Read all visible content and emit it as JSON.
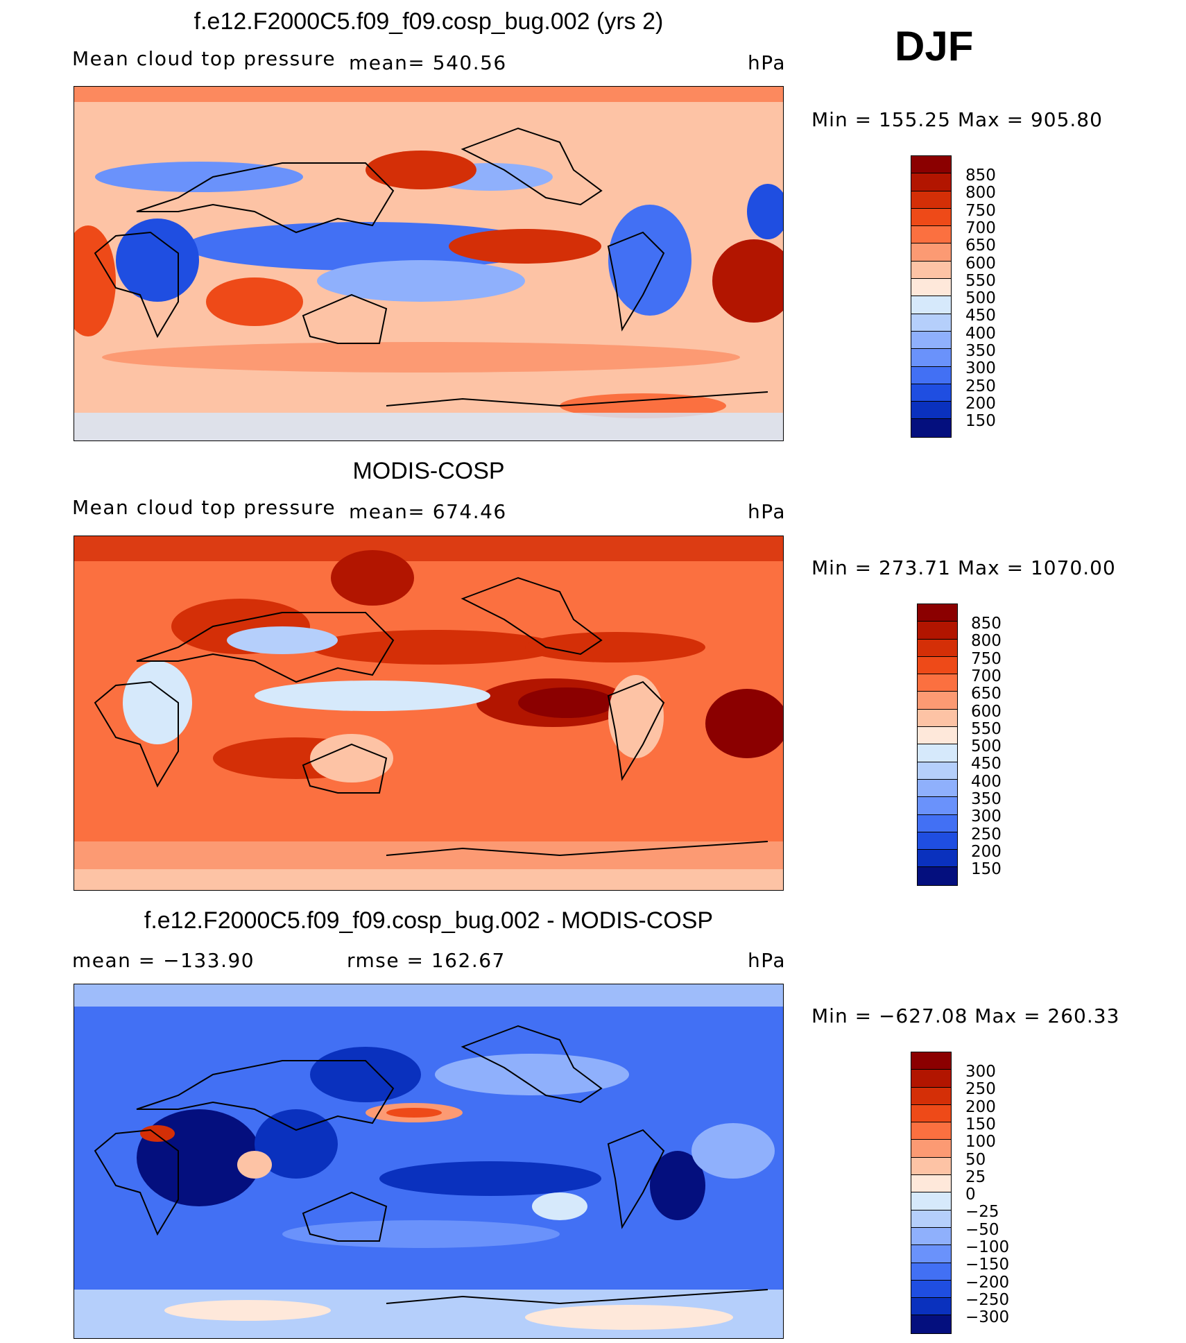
{
  "season": "DJF",
  "panels": [
    {
      "title": "f.e12.F2000C5.f09_f09.cosp_bug.002 (yrs 2)",
      "variable": "Mean cloud top pressure",
      "stat1": "mean=  540.56",
      "stat2": "",
      "units": "hPa",
      "minmax": "Min  =  155.25  Max  =  905.80",
      "colorbar_labels": [
        "850",
        "800",
        "750",
        "700",
        "650",
        "600",
        "550",
        "500",
        "450",
        "400",
        "350",
        "300",
        "250",
        "200",
        "150"
      ],
      "colorbar_colors": [
        "#8b0000",
        "#b21500",
        "#d42f07",
        "#ee4a18",
        "#fb7040",
        "#fc9a73",
        "#fdc3a5",
        "#fee8da",
        "#d6e9fb",
        "#b5cffb",
        "#8fb0fc",
        "#6a92fb",
        "#4270f4",
        "#1f4ee1",
        "#0a31be",
        "#040f7e"
      ]
    },
    {
      "title": "MODIS-COSP",
      "variable": "Mean cloud top pressure",
      "stat1": "mean=  674.46",
      "stat2": "",
      "units": "hPa",
      "minmax": "Min  =  273.71  Max  =  1070.00",
      "colorbar_labels": [
        "850",
        "800",
        "750",
        "700",
        "650",
        "600",
        "550",
        "500",
        "450",
        "400",
        "350",
        "300",
        "250",
        "200",
        "150"
      ],
      "colorbar_colors": [
        "#8b0000",
        "#b21500",
        "#d42f07",
        "#ee4a18",
        "#fb7040",
        "#fc9a73",
        "#fdc3a5",
        "#fee8da",
        "#d6e9fb",
        "#b5cffb",
        "#8fb0fc",
        "#6a92fb",
        "#4270f4",
        "#1f4ee1",
        "#0a31be",
        "#040f7e"
      ]
    },
    {
      "title": "f.e12.F2000C5.f09_f09.cosp_bug.002 - MODIS-COSP",
      "variable": "",
      "stat1": "mean  =  −133.90",
      "stat2": "rmse  =  162.67",
      "units": "hPa",
      "minmax": "Min  =  −627.08  Max  =  260.33",
      "colorbar_labels": [
        "300",
        "250",
        "200",
        "150",
        "100",
        "50",
        "25",
        "0",
        "−25",
        "−50",
        "−100",
        "−150",
        "−200",
        "−250",
        "−300"
      ],
      "colorbar_colors": [
        "#8b0000",
        "#b21500",
        "#d42f07",
        "#ee4a18",
        "#fb7040",
        "#fc9a73",
        "#fdc3a5",
        "#fee8da",
        "#d6e9fb",
        "#b5cffb",
        "#8fb0fc",
        "#6a92fb",
        "#4270f4",
        "#1f4ee1",
        "#0a31be",
        "#040f7e"
      ]
    }
  ]
}
